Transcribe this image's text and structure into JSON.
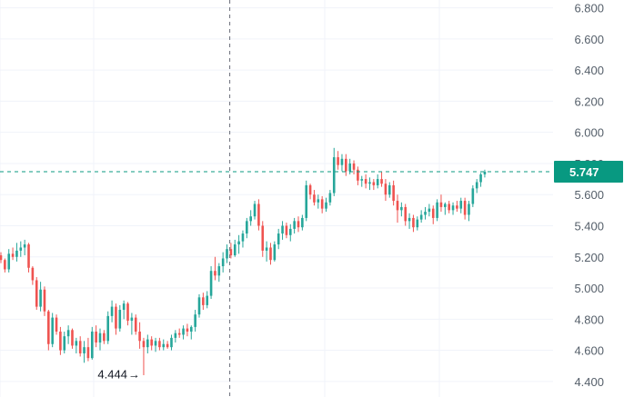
{
  "chart_data": {
    "type": "candlestick",
    "title": "",
    "xlabel": "",
    "ylabel": "",
    "ylim": [
      4.3,
      6.85
    ],
    "yticks": [
      {
        "value": 4.4,
        "label": "4.400"
      },
      {
        "value": 4.6,
        "label": "4.600"
      },
      {
        "value": 4.8,
        "label": "4.800"
      },
      {
        "value": 5.0,
        "label": "5.000"
      },
      {
        "value": 5.2,
        "label": "5.200"
      },
      {
        "value": 5.4,
        "label": "5.400"
      },
      {
        "value": 5.6,
        "label": "5.600"
      },
      {
        "value": 5.8,
        "label": "5.800"
      },
      {
        "value": 6.0,
        "label": "6.000"
      },
      {
        "value": 6.2,
        "label": "6.200"
      },
      {
        "value": 6.4,
        "label": "6.400"
      },
      {
        "value": 6.6,
        "label": "6.600"
      },
      {
        "value": 6.8,
        "label": "6.800"
      }
    ],
    "grid": true,
    "y_axis_position": "right",
    "colors": {
      "up": "#26a69a",
      "down": "#ef5350",
      "last_price": "#089981",
      "annotation": "#131722"
    },
    "last_price": {
      "value": 5.747,
      "label": "5.747"
    },
    "low_annotation": {
      "value": 4.444,
      "label": "4.444",
      "arrow": "→"
    },
    "crosshair": {
      "at_candle_index": 60
    },
    "candles": [
      [
        5.21,
        5.23,
        5.16,
        5.18
      ],
      [
        5.18,
        5.19,
        5.1,
        5.12
      ],
      [
        5.12,
        5.25,
        5.1,
        5.22
      ],
      [
        5.22,
        5.26,
        5.18,
        5.2
      ],
      [
        5.2,
        5.29,
        5.17,
        5.24
      ],
      [
        5.24,
        5.3,
        5.2,
        5.26
      ],
      [
        5.26,
        5.31,
        5.21,
        5.28
      ],
      [
        5.28,
        5.29,
        5.1,
        5.13
      ],
      [
        5.13,
        5.14,
        5.02,
        5.05
      ],
      [
        5.05,
        5.07,
        4.86,
        4.88
      ],
      [
        4.88,
        5.04,
        4.85,
        4.99
      ],
      [
        4.99,
        5.01,
        4.82,
        4.85
      ],
      [
        4.85,
        4.86,
        4.6,
        4.64
      ],
      [
        4.64,
        4.84,
        4.62,
        4.81
      ],
      [
        4.81,
        4.83,
        4.7,
        4.72
      ],
      [
        4.72,
        4.75,
        4.57,
        4.6
      ],
      [
        4.6,
        4.72,
        4.58,
        4.69
      ],
      [
        4.69,
        4.76,
        4.64,
        4.73
      ],
      [
        4.73,
        4.74,
        4.61,
        4.63
      ],
      [
        4.63,
        4.68,
        4.58,
        4.66
      ],
      [
        4.66,
        4.69,
        4.56,
        4.58
      ],
      [
        4.58,
        4.66,
        4.52,
        4.62
      ],
      [
        4.62,
        4.68,
        4.53,
        4.55
      ],
      [
        4.55,
        4.75,
        4.54,
        4.72
      ],
      [
        4.72,
        4.76,
        4.62,
        4.65
      ],
      [
        4.65,
        4.74,
        4.6,
        4.71
      ],
      [
        4.71,
        4.73,
        4.64,
        4.66
      ],
      [
        4.66,
        4.85,
        4.64,
        4.82
      ],
      [
        4.82,
        4.92,
        4.78,
        4.88
      ],
      [
        4.88,
        4.9,
        4.7,
        4.74
      ],
      [
        4.74,
        4.89,
        4.72,
        4.86
      ],
      [
        4.86,
        4.92,
        4.8,
        4.9
      ],
      [
        4.9,
        4.91,
        4.76,
        4.79
      ],
      [
        4.79,
        4.84,
        4.7,
        4.81
      ],
      [
        4.81,
        4.83,
        4.7,
        4.72
      ],
      [
        4.72,
        4.78,
        4.61,
        4.66
      ],
      [
        4.66,
        4.68,
        4.44,
        4.62
      ],
      [
        4.62,
        4.7,
        4.58,
        4.67
      ],
      [
        4.67,
        4.69,
        4.6,
        4.63
      ],
      [
        4.63,
        4.68,
        4.59,
        4.66
      ],
      [
        4.66,
        4.68,
        4.6,
        4.62
      ],
      [
        4.62,
        4.67,
        4.6,
        4.64
      ],
      [
        4.64,
        4.66,
        4.61,
        4.62
      ],
      [
        4.62,
        4.7,
        4.6,
        4.68
      ],
      [
        4.68,
        4.73,
        4.65,
        4.71
      ],
      [
        4.71,
        4.74,
        4.68,
        4.7
      ],
      [
        4.7,
        4.76,
        4.67,
        4.74
      ],
      [
        4.74,
        4.77,
        4.69,
        4.72
      ],
      [
        4.72,
        4.76,
        4.67,
        4.75
      ],
      [
        4.75,
        4.86,
        4.72,
        4.83
      ],
      [
        4.83,
        4.96,
        4.81,
        4.94
      ],
      [
        4.94,
        4.97,
        4.86,
        4.89
      ],
      [
        4.89,
        4.98,
        4.87,
        4.95
      ],
      [
        4.95,
        5.14,
        4.93,
        5.11
      ],
      [
        5.11,
        5.2,
        5.05,
        5.08
      ],
      [
        5.08,
        5.16,
        5.04,
        5.14
      ],
      [
        5.14,
        5.23,
        5.1,
        5.19
      ],
      [
        5.19,
        5.28,
        5.16,
        5.25
      ],
      [
        5.25,
        5.29,
        5.19,
        5.21
      ],
      [
        5.21,
        5.31,
        5.2,
        5.28
      ],
      [
        5.28,
        5.34,
        5.22,
        5.3
      ],
      [
        5.3,
        5.37,
        5.26,
        5.35
      ],
      [
        5.35,
        5.45,
        5.32,
        5.43
      ],
      [
        5.43,
        5.5,
        5.4,
        5.46
      ],
      [
        5.46,
        5.56,
        5.44,
        5.54
      ],
      [
        5.54,
        5.57,
        5.37,
        5.4
      ],
      [
        5.4,
        5.43,
        5.2,
        5.24
      ],
      [
        5.24,
        5.3,
        5.17,
        5.26
      ],
      [
        5.26,
        5.29,
        5.15,
        5.18
      ],
      [
        5.18,
        5.3,
        5.17,
        5.28
      ],
      [
        5.28,
        5.38,
        5.25,
        5.35
      ],
      [
        5.35,
        5.43,
        5.31,
        5.4
      ],
      [
        5.4,
        5.42,
        5.32,
        5.34
      ],
      [
        5.34,
        5.41,
        5.3,
        5.38
      ],
      [
        5.38,
        5.45,
        5.35,
        5.43
      ],
      [
        5.43,
        5.46,
        5.36,
        5.39
      ],
      [
        5.39,
        5.47,
        5.37,
        5.45
      ],
      [
        5.45,
        5.69,
        5.43,
        5.66
      ],
      [
        5.66,
        5.67,
        5.57,
        5.6
      ],
      [
        5.6,
        5.63,
        5.53,
        5.55
      ],
      [
        5.55,
        5.6,
        5.51,
        5.57
      ],
      [
        5.57,
        5.59,
        5.48,
        5.51
      ],
      [
        5.51,
        5.58,
        5.49,
        5.55
      ],
      [
        5.55,
        5.63,
        5.53,
        5.61
      ],
      [
        5.61,
        5.9,
        5.59,
        5.84
      ],
      [
        5.84,
        5.88,
        5.76,
        5.79
      ],
      [
        5.79,
        5.86,
        5.75,
        5.83
      ],
      [
        5.83,
        5.86,
        5.72,
        5.75
      ],
      [
        5.75,
        5.83,
        5.73,
        5.8
      ],
      [
        5.8,
        5.82,
        5.73,
        5.76
      ],
      [
        5.76,
        5.78,
        5.66,
        5.69
      ],
      [
        5.69,
        5.72,
        5.65,
        5.7
      ],
      [
        5.7,
        5.73,
        5.64,
        5.67
      ],
      [
        5.67,
        5.71,
        5.63,
        5.68
      ],
      [
        5.68,
        5.7,
        5.63,
        5.66
      ],
      [
        5.66,
        5.73,
        5.64,
        5.7
      ],
      [
        5.7,
        5.75,
        5.65,
        5.67
      ],
      [
        5.67,
        5.7,
        5.56,
        5.6
      ],
      [
        5.6,
        5.68,
        5.58,
        5.66
      ],
      [
        5.66,
        5.69,
        5.53,
        5.56
      ],
      [
        5.56,
        5.6,
        5.42,
        5.5
      ],
      [
        5.5,
        5.55,
        5.46,
        5.52
      ],
      [
        5.52,
        5.54,
        5.4,
        5.43
      ],
      [
        5.43,
        5.48,
        5.38,
        5.45
      ],
      [
        5.45,
        5.47,
        5.36,
        5.39
      ],
      [
        5.39,
        5.46,
        5.37,
        5.44
      ],
      [
        5.44,
        5.5,
        5.42,
        5.47
      ],
      [
        5.47,
        5.52,
        5.44,
        5.49
      ],
      [
        5.49,
        5.54,
        5.46,
        5.51
      ],
      [
        5.51,
        5.53,
        5.41,
        5.45
      ],
      [
        5.45,
        5.57,
        5.43,
        5.55
      ],
      [
        5.55,
        5.6,
        5.49,
        5.52
      ],
      [
        5.52,
        5.55,
        5.47,
        5.54
      ],
      [
        5.54,
        5.56,
        5.48,
        5.5
      ],
      [
        5.5,
        5.55,
        5.47,
        5.53
      ],
      [
        5.53,
        5.56,
        5.49,
        5.51
      ],
      [
        5.51,
        5.58,
        5.48,
        5.56
      ],
      [
        5.56,
        5.58,
        5.44,
        5.47
      ],
      [
        5.47,
        5.56,
        5.43,
        5.54
      ],
      [
        5.54,
        5.66,
        5.52,
        5.64
      ],
      [
        5.64,
        5.7,
        5.61,
        5.68
      ],
      [
        5.68,
        5.74,
        5.65,
        5.73
      ],
      [
        5.73,
        5.76,
        5.71,
        5.747
      ]
    ]
  }
}
